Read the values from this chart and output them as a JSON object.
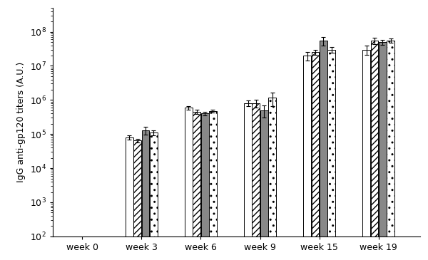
{
  "categories": [
    "week 0",
    "week 3",
    "week 6",
    "week 9",
    "week 15",
    "week 19"
  ],
  "n_bars": 4,
  "values": [
    [
      100,
      100,
      100,
      100
    ],
    [
      80000.0,
      65000.0,
      130000.0,
      110000.0
    ],
    [
      600000.0,
      450000.0,
      400000.0,
      480000.0
    ],
    [
      800000.0,
      800000.0,
      500000.0,
      1150000.0
    ],
    [
      20000000.0,
      25000000.0,
      55000000.0,
      30000000.0
    ],
    [
      30000000.0,
      55000000.0,
      50000000.0,
      55000000.0
    ]
  ],
  "errors": [
    [
      0,
      0,
      0,
      0
    ],
    [
      10000.0,
      8000.0,
      35000.0,
      20000.0
    ],
    [
      70000.0,
      60000.0,
      50000.0,
      50000.0
    ],
    [
      150000.0,
      200000.0,
      200000.0,
      500000.0
    ],
    [
      6000000.0,
      4000000.0,
      15000000.0,
      6000000.0
    ],
    [
      9000000.0,
      12000000.0,
      8000000.0,
      8000000.0
    ]
  ],
  "bar_colors": [
    "white",
    "white",
    "#888888",
    "white"
  ],
  "bar_hatches": [
    null,
    "////",
    null,
    ".."
  ],
  "ylabel": "IgG anti-gp120 titers (A.U.)",
  "ylim_log": [
    100.0,
    500000000.0
  ],
  "yticks": [
    100.0,
    1000.0,
    10000.0,
    100000.0,
    1000000.0,
    10000000.0,
    100000000.0
  ],
  "ytick_labels": [
    "10$^2$",
    "10$^3$",
    "10$^4$",
    "10$^5$",
    "10$^6$",
    "10$^7$",
    "10$^8$"
  ],
  "background_color": "#ffffff",
  "bar_width": 0.13,
  "group_positions": [
    0.5,
    1.5,
    2.5,
    3.5,
    4.5,
    5.5
  ]
}
